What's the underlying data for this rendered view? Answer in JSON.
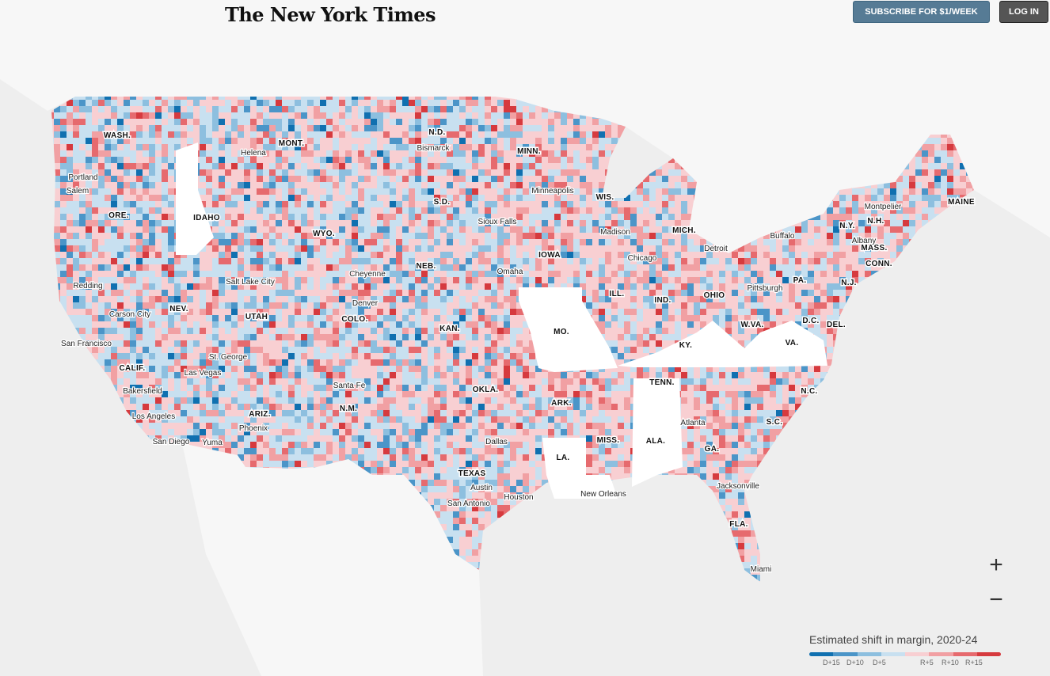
{
  "header": {
    "logo": "The New York Times",
    "subscribe_label": "SUBSCRIBE FOR $1/WEEK",
    "login_label": "LOG IN"
  },
  "zoom": {
    "in": "+",
    "out": "−"
  },
  "legend": {
    "title": "Estimated shift in margin, 2020-24",
    "colors": [
      "#1070b0",
      "#4b95c8",
      "#8dbfdf",
      "#c8e0f0",
      "#f8cfd2",
      "#f1a0a3",
      "#e66a6e",
      "#d63a3e"
    ],
    "ticks": [
      "D+15",
      "D+10",
      "D+5",
      "R+5",
      "R+10",
      "R+15"
    ]
  },
  "states": [
    "WASH.",
    "MONT.",
    "N.D.",
    "MINN.",
    "MAINE",
    "ORE.",
    "IDAHO",
    "WYO.",
    "S.D.",
    "WIS.",
    "MICH.",
    "N.Y.",
    "N.H.",
    "MASS.",
    "CONN.",
    "IOWA",
    "NEB.",
    "N.J.",
    "PA.",
    "NEV.",
    "UTAH",
    "COLO.",
    "ILL.",
    "IND.",
    "OHIO",
    "W.VA.",
    "D.C.",
    "DEL.",
    "KAN.",
    "MO.",
    "KY.",
    "VA.",
    "CALIF.",
    "TENN.",
    "N.C.",
    "OKLA.",
    "ARK.",
    "ARIZ.",
    "N.M.",
    "S.C.",
    "MISS.",
    "ALA.",
    "GA.",
    "TEXAS",
    "LA.",
    "FLA."
  ],
  "cities": [
    "Helena",
    "Bismarck",
    "Portland",
    "Salem",
    "Minneapolis",
    "Sioux Falls",
    "Madison",
    "Montpelier",
    "Buffalo",
    "Albany",
    "Detroit",
    "Chicago",
    "Omaha",
    "Cheyenne",
    "Redding",
    "Salt Lake City",
    "Pittsburgh",
    "Denver",
    "Carson City",
    "San Francisco",
    "St. George",
    "Las Vegas",
    "Santa Fe",
    "Bakersfield",
    "Los Angeles",
    "Phoenix",
    "Atlanta",
    "Dallas",
    "San Diego",
    "Yuma",
    "Austin",
    "Houston",
    "San Antonio",
    "New Orleans",
    "Jacksonville",
    "Miami"
  ]
}
